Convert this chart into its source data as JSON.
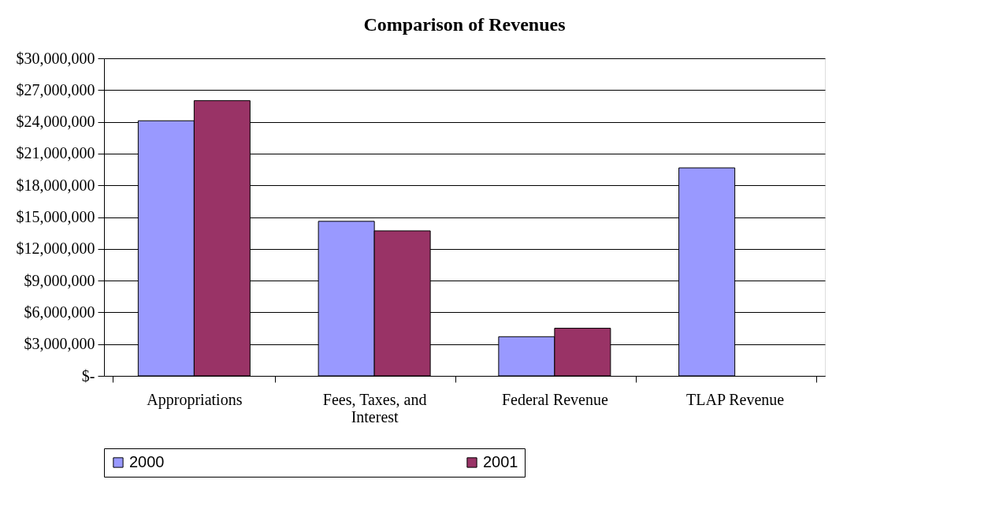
{
  "chart_data": {
    "type": "bar",
    "title": "Comparison of Revenues",
    "categories": [
      "Appropriations",
      "Fees, Taxes, and Interest",
      "Federal Revenue",
      "TLAP Revenue"
    ],
    "series": [
      {
        "name": "2000",
        "color": "#9999ff",
        "values": [
          24100000,
          14600000,
          3700000,
          19650000
        ]
      },
      {
        "name": "2001",
        "color": "#993366",
        "values": [
          26000000,
          13700000,
          4500000,
          null
        ]
      }
    ],
    "ylim": [
      0,
      30000000
    ],
    "yticks": [
      {
        "value": 0,
        "label": "$-"
      },
      {
        "value": 3000000,
        "label": "$3,000,000"
      },
      {
        "value": 6000000,
        "label": "$6,000,000"
      },
      {
        "value": 9000000,
        "label": "$9,000,000"
      },
      {
        "value": 12000000,
        "label": "$12,000,000"
      },
      {
        "value": 15000000,
        "label": "$15,000,000"
      },
      {
        "value": 18000000,
        "label": "$18,000,000"
      },
      {
        "value": 21000000,
        "label": "$21,000,000"
      },
      {
        "value": 24000000,
        "label": "$24,000,000"
      },
      {
        "value": 27000000,
        "label": "$27,000,000"
      },
      {
        "value": 30000000,
        "label": "$30,000,000"
      }
    ],
    "grid": "y",
    "legend": "bottom"
  }
}
